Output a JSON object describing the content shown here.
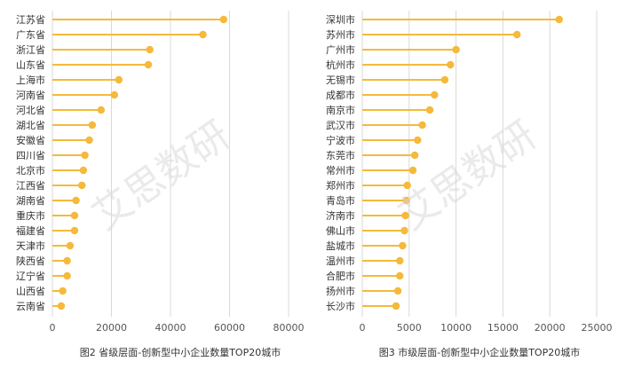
{
  "colors": {
    "lollipop": "#F5B93B",
    "grid": "#d9d9d9",
    "axis": "#bfbfbf"
  },
  "watermark": "艾思数研",
  "chart_data": [
    {
      "type": "bar",
      "style": "lollipop-horizontal",
      "title": "图2 省级层面-创新型中小企业数量TOP20城市",
      "categories": [
        "江苏省",
        "广东省",
        "浙江省",
        "山东省",
        "上海市",
        "河南省",
        "河北省",
        "湖北省",
        "安徽省",
        "四川省",
        "北京市",
        "江西省",
        "湖南省",
        "重庆市",
        "福建省",
        "天津市",
        "陕西省",
        "辽宁省",
        "山西省",
        "云南省"
      ],
      "values": [
        58000,
        51000,
        33000,
        32500,
        22500,
        21000,
        16500,
        13500,
        12500,
        11000,
        10500,
        10000,
        8000,
        7500,
        7500,
        6000,
        5000,
        5000,
        3500,
        3000
      ],
      "xlim": [
        0,
        80000
      ],
      "xticks": [
        "0",
        "20000",
        "40000",
        "60000",
        "80000"
      ],
      "grid": true
    },
    {
      "type": "bar",
      "style": "lollipop-horizontal",
      "title": "图3 市级层面-创新型中小企业数量TOP20城市",
      "categories": [
        "深圳市",
        "苏州市",
        "广州市",
        "杭州市",
        "无锡市",
        "成都市",
        "南京市",
        "武汉市",
        "宁波市",
        "东莞市",
        "常州市",
        "郑州市",
        "青岛市",
        "济南市",
        "佛山市",
        "盐城市",
        "温州市",
        "合肥市",
        "扬州市",
        "长沙市"
      ],
      "values": [
        21000,
        16500,
        10000,
        9400,
        8800,
        7700,
        7200,
        6400,
        5900,
        5600,
        5400,
        4800,
        4700,
        4600,
        4500,
        4300,
        4000,
        4000,
        3800,
        3600
      ],
      "xlim": [
        0,
        25000
      ],
      "xticks": [
        "0",
        "5000",
        "10000",
        "15000",
        "20000",
        "25000"
      ],
      "grid": true
    }
  ]
}
